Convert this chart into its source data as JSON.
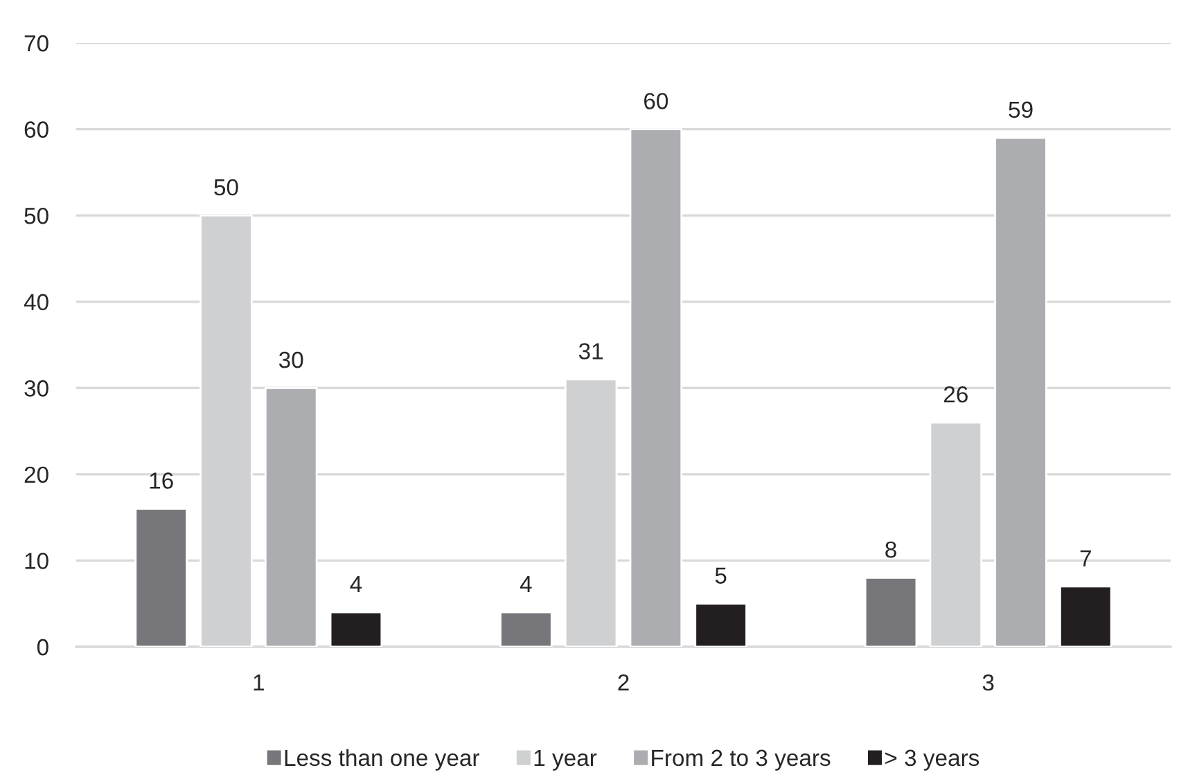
{
  "chart_data": {
    "type": "bar",
    "categories": [
      "1",
      "2",
      "3"
    ],
    "series": [
      {
        "name": "Less than one year",
        "color": "#77777b",
        "values": [
          16,
          4,
          8
        ]
      },
      {
        "name": "1 year",
        "color": "#cfd0d2",
        "values": [
          50,
          31,
          26
        ]
      },
      {
        "name": "From 2 to 3 years",
        "color": "#acadb0",
        "values": [
          30,
          60,
          59
        ]
      },
      {
        "name": "> 3 years",
        "color": "#231f20",
        "values": [
          4,
          5,
          7
        ]
      }
    ],
    "ylim": [
      0,
      70
    ],
    "yticks": [
      0,
      10,
      20,
      30,
      40,
      50,
      60,
      70
    ],
    "grid": "y",
    "legend": "bottom",
    "data_labels": true
  }
}
